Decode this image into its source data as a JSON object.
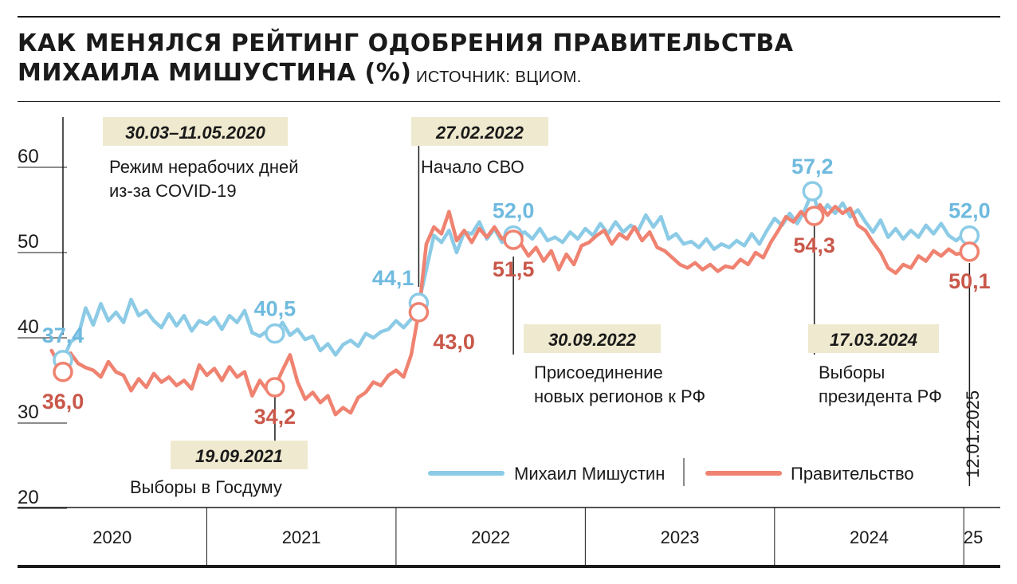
{
  "colors": {
    "mishustin": "#8ccbe6",
    "government": "#ef8270",
    "mishustin_label": "#6fbadf",
    "government_label": "#c9584a",
    "annotation_bg": "#efe9cf"
  },
  "header": {
    "title_line1": "КАК МЕНЯЛСЯ РЕЙТИНГ ОДОБРЕНИЯ ПРАВИТЕЛЬСТВА",
    "title_line2": "МИХАИЛА МИШУСТИНА (%)",
    "source": "ИСТОЧНИК: ВЦИОМ."
  },
  "chart_data": {
    "type": "line",
    "title": "КАК МЕНЯЛСЯ РЕЙТИНГ ОДОБРЕНИЯ ПРАВИТЕЛЬСТВА МИХАИЛА МИШУСТИНА (%)",
    "source": "ИСТОЧНИК: ВЦИОМ.",
    "ylim": [
      20,
      65
    ],
    "yticks": [
      20,
      30,
      40,
      50,
      60
    ],
    "x_range": [
      2020.0,
      2025.1
    ],
    "x_axis_labels": [
      {
        "label": "2020",
        "center": 2020.5
      },
      {
        "label": "2021",
        "center": 2021.5
      },
      {
        "label": "2022",
        "center": 2022.5
      },
      {
        "label": "2023",
        "center": 2023.5
      },
      {
        "label": "2024",
        "center": 2024.5
      },
      {
        "label": "25",
        "center": 2025.05
      }
    ],
    "year_boundaries": [
      2021,
      2022,
      2023,
      2024,
      2025
    ],
    "legend": {
      "position": "bottom-right",
      "entries": [
        "Михаил Мишустин",
        "Правительство"
      ]
    },
    "series": [
      {
        "name": "Михаил Мишустин",
        "color": "#8ccbe6",
        "points": [
          [
            2020.24,
            37.4
          ],
          [
            2020.28,
            39.5
          ],
          [
            2020.32,
            40.2
          ],
          [
            2020.36,
            43.5
          ],
          [
            2020.4,
            41.5
          ],
          [
            2020.44,
            44.0
          ],
          [
            2020.48,
            42.0
          ],
          [
            2020.52,
            43.0
          ],
          [
            2020.56,
            41.8
          ],
          [
            2020.6,
            44.5
          ],
          [
            2020.64,
            42.6
          ],
          [
            2020.68,
            43.2
          ],
          [
            2020.72,
            42.0
          ],
          [
            2020.76,
            41.2
          ],
          [
            2020.8,
            42.8
          ],
          [
            2020.84,
            41.4
          ],
          [
            2020.88,
            42.6
          ],
          [
            2020.92,
            40.8
          ],
          [
            2020.96,
            42.0
          ],
          [
            2021.0,
            41.6
          ],
          [
            2021.04,
            42.4
          ],
          [
            2021.08,
            41.0
          ],
          [
            2021.12,
            42.6
          ],
          [
            2021.16,
            41.8
          ],
          [
            2021.2,
            43.2
          ],
          [
            2021.24,
            40.6
          ],
          [
            2021.28,
            40.2
          ],
          [
            2021.32,
            40.8
          ],
          [
            2021.36,
            40.5
          ],
          [
            2021.4,
            41.8
          ],
          [
            2021.44,
            40.3
          ],
          [
            2021.48,
            41.0
          ],
          [
            2021.52,
            39.8
          ],
          [
            2021.56,
            40.2
          ],
          [
            2021.6,
            38.5
          ],
          [
            2021.64,
            39.3
          ],
          [
            2021.68,
            38.0
          ],
          [
            2021.72,
            39.2
          ],
          [
            2021.76,
            39.7
          ],
          [
            2021.8,
            39.0
          ],
          [
            2021.84,
            40.5
          ],
          [
            2021.88,
            40.0
          ],
          [
            2021.92,
            40.7
          ],
          [
            2021.96,
            41.0
          ],
          [
            2022.0,
            42.0
          ],
          [
            2022.04,
            41.2
          ],
          [
            2022.08,
            42.2
          ],
          [
            2022.12,
            44.1
          ],
          [
            2022.16,
            48.0
          ],
          [
            2022.2,
            52.0
          ],
          [
            2022.24,
            51.2
          ],
          [
            2022.28,
            52.6
          ],
          [
            2022.32,
            50.0
          ],
          [
            2022.36,
            52.4
          ],
          [
            2022.4,
            52.2
          ],
          [
            2022.44,
            53.6
          ],
          [
            2022.48,
            51.6
          ],
          [
            2022.52,
            52.8
          ],
          [
            2022.56,
            51.2
          ],
          [
            2022.6,
            52.6
          ],
          [
            2022.64,
            52.0
          ],
          [
            2022.68,
            52.4
          ],
          [
            2022.72,
            51.6
          ],
          [
            2022.76,
            52.8
          ],
          [
            2022.8,
            51.4
          ],
          [
            2022.84,
            51.8
          ],
          [
            2022.88,
            51.2
          ],
          [
            2022.92,
            52.4
          ],
          [
            2022.96,
            51.6
          ],
          [
            2023.0,
            52.8
          ],
          [
            2023.04,
            52.0
          ],
          [
            2023.08,
            53.4
          ],
          [
            2023.12,
            52.2
          ],
          [
            2023.16,
            53.6
          ],
          [
            2023.2,
            52.4
          ],
          [
            2023.24,
            53.2
          ],
          [
            2023.28,
            52.6
          ],
          [
            2023.32,
            54.4
          ],
          [
            2023.36,
            53.0
          ],
          [
            2023.4,
            54.2
          ],
          [
            2023.44,
            51.6
          ],
          [
            2023.48,
            52.2
          ],
          [
            2023.52,
            51.0
          ],
          [
            2023.56,
            51.3
          ],
          [
            2023.6,
            50.6
          ],
          [
            2023.64,
            51.6
          ],
          [
            2023.68,
            50.4
          ],
          [
            2023.72,
            51.0
          ],
          [
            2023.76,
            50.6
          ],
          [
            2023.8,
            51.4
          ],
          [
            2023.84,
            50.8
          ],
          [
            2023.88,
            52.2
          ],
          [
            2023.92,
            51.0
          ],
          [
            2023.96,
            52.6
          ],
          [
            2024.0,
            54.0
          ],
          [
            2024.04,
            53.2
          ],
          [
            2024.08,
            54.6
          ],
          [
            2024.12,
            53.4
          ],
          [
            2024.16,
            55.0
          ],
          [
            2024.2,
            57.2
          ],
          [
            2024.24,
            54.2
          ],
          [
            2024.28,
            55.6
          ],
          [
            2024.32,
            54.6
          ],
          [
            2024.36,
            55.8
          ],
          [
            2024.4,
            54.2
          ],
          [
            2024.44,
            55.0
          ],
          [
            2024.48,
            53.6
          ],
          [
            2024.52,
            52.4
          ],
          [
            2024.56,
            53.8
          ],
          [
            2024.6,
            51.8
          ],
          [
            2024.64,
            52.8
          ],
          [
            2024.68,
            51.6
          ],
          [
            2024.72,
            52.6
          ],
          [
            2024.76,
            51.8
          ],
          [
            2024.8,
            53.2
          ],
          [
            2024.84,
            52.2
          ],
          [
            2024.88,
            53.4
          ],
          [
            2024.92,
            52.0
          ],
          [
            2024.96,
            51.4
          ],
          [
            2025.0,
            52.2
          ],
          [
            2025.03,
            52.0
          ]
        ],
        "labels": [
          {
            "x": 2020.24,
            "y": 37.4,
            "text": "37,4",
            "pos": "above"
          },
          {
            "x": 2021.36,
            "y": 40.5,
            "text": "40,5",
            "pos": "above"
          },
          {
            "x": 2022.12,
            "y": 44.1,
            "text": "44,1",
            "pos": "above-left"
          },
          {
            "x": 2022.62,
            "y": 52.0,
            "text": "52,0",
            "pos": "above"
          },
          {
            "x": 2024.2,
            "y": 57.2,
            "text": "57,2",
            "pos": "above"
          },
          {
            "x": 2025.03,
            "y": 52.0,
            "text": "52,0",
            "pos": "above"
          }
        ]
      },
      {
        "name": "Правительство",
        "color": "#ef8270",
        "points": [
          [
            2020.18,
            38.5
          ],
          [
            2020.24,
            36.0
          ],
          [
            2020.28,
            38.2
          ],
          [
            2020.32,
            37.0
          ],
          [
            2020.36,
            36.5
          ],
          [
            2020.4,
            36.2
          ],
          [
            2020.44,
            35.4
          ],
          [
            2020.48,
            37.2
          ],
          [
            2020.52,
            36.0
          ],
          [
            2020.56,
            35.6
          ],
          [
            2020.6,
            33.8
          ],
          [
            2020.64,
            35.2
          ],
          [
            2020.68,
            34.2
          ],
          [
            2020.72,
            35.8
          ],
          [
            2020.76,
            34.8
          ],
          [
            2020.8,
            35.4
          ],
          [
            2020.84,
            34.4
          ],
          [
            2020.88,
            35.0
          ],
          [
            2020.92,
            34.0
          ],
          [
            2020.96,
            36.8
          ],
          [
            2021.0,
            35.6
          ],
          [
            2021.04,
            36.4
          ],
          [
            2021.08,
            35.0
          ],
          [
            2021.12,
            36.6
          ],
          [
            2021.16,
            35.4
          ],
          [
            2021.2,
            36.0
          ],
          [
            2021.24,
            33.2
          ],
          [
            2021.28,
            35.0
          ],
          [
            2021.32,
            33.8
          ],
          [
            2021.36,
            34.2
          ],
          [
            2021.4,
            36.2
          ],
          [
            2021.44,
            38.0
          ],
          [
            2021.48,
            34.8
          ],
          [
            2021.52,
            32.8
          ],
          [
            2021.56,
            33.6
          ],
          [
            2021.6,
            32.4
          ],
          [
            2021.64,
            33.2
          ],
          [
            2021.68,
            31.0
          ],
          [
            2021.72,
            31.8
          ],
          [
            2021.76,
            31.2
          ],
          [
            2021.8,
            33.0
          ],
          [
            2021.84,
            33.6
          ],
          [
            2021.88,
            34.8
          ],
          [
            2021.92,
            34.4
          ],
          [
            2021.96,
            35.6
          ],
          [
            2022.0,
            36.2
          ],
          [
            2022.04,
            35.4
          ],
          [
            2022.08,
            38.0
          ],
          [
            2022.12,
            43.0
          ],
          [
            2022.16,
            51.0
          ],
          [
            2022.2,
            53.0
          ],
          [
            2022.24,
            52.2
          ],
          [
            2022.28,
            54.8
          ],
          [
            2022.32,
            51.4
          ],
          [
            2022.36,
            52.6
          ],
          [
            2022.4,
            51.2
          ],
          [
            2022.44,
            52.8
          ],
          [
            2022.48,
            51.8
          ],
          [
            2022.52,
            53.0
          ],
          [
            2022.56,
            51.6
          ],
          [
            2022.6,
            52.4
          ],
          [
            2022.62,
            51.5
          ],
          [
            2022.66,
            51.0
          ],
          [
            2022.7,
            49.6
          ],
          [
            2022.74,
            50.6
          ],
          [
            2022.78,
            49.0
          ],
          [
            2022.82,
            50.2
          ],
          [
            2022.86,
            48.0
          ],
          [
            2022.9,
            49.8
          ],
          [
            2022.94,
            48.6
          ],
          [
            2022.98,
            50.8
          ],
          [
            2023.02,
            51.2
          ],
          [
            2023.06,
            52.0
          ],
          [
            2023.1,
            52.6
          ],
          [
            2023.14,
            51.0
          ],
          [
            2023.18,
            52.2
          ],
          [
            2023.22,
            51.6
          ],
          [
            2023.26,
            53.0
          ],
          [
            2023.3,
            51.4
          ],
          [
            2023.34,
            52.4
          ],
          [
            2023.38,
            50.6
          ],
          [
            2023.42,
            50.2
          ],
          [
            2023.46,
            49.4
          ],
          [
            2023.5,
            48.6
          ],
          [
            2023.54,
            48.2
          ],
          [
            2023.58,
            48.8
          ],
          [
            2023.62,
            48.0
          ],
          [
            2023.66,
            48.6
          ],
          [
            2023.7,
            47.8
          ],
          [
            2023.74,
            48.4
          ],
          [
            2023.78,
            48.2
          ],
          [
            2023.82,
            49.2
          ],
          [
            2023.86,
            48.6
          ],
          [
            2023.9,
            50.0
          ],
          [
            2023.94,
            49.4
          ],
          [
            2023.98,
            51.2
          ],
          [
            2024.02,
            52.6
          ],
          [
            2024.06,
            54.2
          ],
          [
            2024.1,
            53.6
          ],
          [
            2024.14,
            54.8
          ],
          [
            2024.18,
            53.8
          ],
          [
            2024.21,
            54.3
          ],
          [
            2024.24,
            55.6
          ],
          [
            2024.28,
            54.4
          ],
          [
            2024.32,
            55.4
          ],
          [
            2024.36,
            54.6
          ],
          [
            2024.4,
            55.2
          ],
          [
            2024.44,
            53.2
          ],
          [
            2024.48,
            52.6
          ],
          [
            2024.52,
            51.2
          ],
          [
            2024.56,
            50.0
          ],
          [
            2024.6,
            48.2
          ],
          [
            2024.64,
            47.6
          ],
          [
            2024.68,
            48.6
          ],
          [
            2024.72,
            48.2
          ],
          [
            2024.76,
            49.6
          ],
          [
            2024.8,
            49.0
          ],
          [
            2024.84,
            50.2
          ],
          [
            2024.88,
            49.6
          ],
          [
            2024.92,
            50.4
          ],
          [
            2024.96,
            49.8
          ],
          [
            2025.0,
            50.0
          ],
          [
            2025.03,
            50.1
          ]
        ],
        "labels": [
          {
            "x": 2020.24,
            "y": 36.0,
            "text": "36,0",
            "pos": "below"
          },
          {
            "x": 2021.36,
            "y": 34.2,
            "text": "34,2",
            "pos": "below"
          },
          {
            "x": 2022.12,
            "y": 43.0,
            "text": "43,0",
            "pos": "below-right"
          },
          {
            "x": 2022.62,
            "y": 51.5,
            "text": "51,5",
            "pos": "below"
          },
          {
            "x": 2024.21,
            "y": 54.3,
            "text": "54,3",
            "pos": "below"
          },
          {
            "x": 2025.03,
            "y": 50.1,
            "text": "50,1",
            "pos": "below"
          }
        ]
      }
    ],
    "annotations": [
      {
        "date": "30.03–11.05.2020",
        "text": [
          "Режим нерабочих дней",
          "из-за COVID-19"
        ],
        "x": 2020.24,
        "side": "top"
      },
      {
        "date": "19.09.2021",
        "text": [
          "Выборы в Госдуму"
        ],
        "x": 2021.36,
        "side": "bottom"
      },
      {
        "date": "27.02.2022",
        "text": [
          "Начало СВО"
        ],
        "x": 2022.12,
        "side": "top"
      },
      {
        "date": "30.09.2022",
        "text": [
          "Присоединение",
          "новых регионов к РФ"
        ],
        "x": 2022.62,
        "side": "bottom"
      },
      {
        "date": "17.03.2024",
        "text": [
          "Выборы",
          "президента РФ"
        ],
        "x": 2024.21,
        "side": "bottom"
      },
      {
        "date": "12.01.2025",
        "text": [],
        "x": 2025.03,
        "side": "vertical"
      }
    ]
  }
}
